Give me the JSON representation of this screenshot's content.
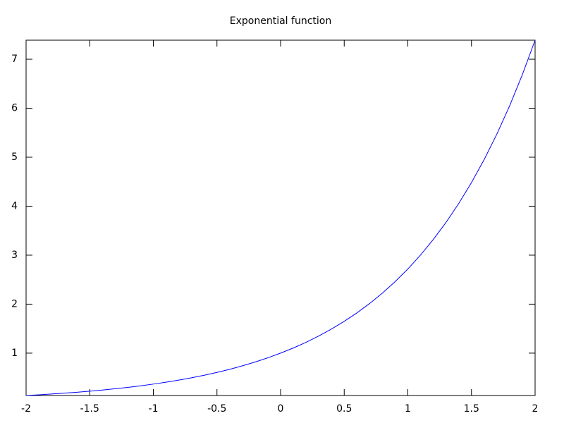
{
  "chart_data": {
    "type": "line",
    "title": "Exponential function",
    "x": [
      -2.0,
      -1.9,
      -1.8,
      -1.7,
      -1.6,
      -1.5,
      -1.4,
      -1.3,
      -1.2,
      -1.1,
      -1.0,
      -0.9,
      -0.8,
      -0.7,
      -0.6,
      -0.5,
      -0.4,
      -0.3,
      -0.2,
      -0.1,
      0,
      0.1,
      0.2,
      0.3,
      0.4,
      0.5,
      0.6,
      0.7,
      0.8,
      0.9,
      1.0,
      1.1,
      1.2,
      1.3,
      1.4,
      1.5,
      1.6,
      1.7,
      1.8,
      1.9,
      2.0
    ],
    "series": [
      {
        "color": "#0000ff",
        "values": [
          0.135,
          0.15,
          0.165,
          0.183,
          0.202,
          0.223,
          0.247,
          0.273,
          0.301,
          0.333,
          0.368,
          0.407,
          0.449,
          0.497,
          0.549,
          0.607,
          0.67,
          0.741,
          0.819,
          0.905,
          1.0,
          1.105,
          1.221,
          1.35,
          1.492,
          1.649,
          1.822,
          2.014,
          2.226,
          2.46,
          2.718,
          3.004,
          3.32,
          3.669,
          4.055,
          4.482,
          4.953,
          5.474,
          6.05,
          6.686,
          7.389
        ]
      }
    ],
    "xlim": [
      -2,
      2
    ],
    "ylim": [
      0.135,
      7.389
    ],
    "xticks": [
      -2,
      -1.5,
      -1,
      -0.5,
      0,
      0.5,
      1,
      1.5,
      2
    ],
    "yticks": [
      1,
      2,
      3,
      4,
      5,
      6,
      7
    ],
    "grid": false
  }
}
